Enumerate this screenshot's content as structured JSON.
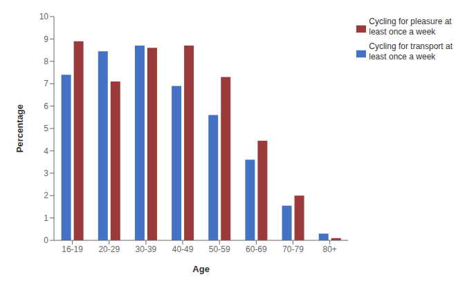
{
  "chart_data": {
    "type": "bar",
    "categories": [
      "16-19",
      "20-29",
      "30-39",
      "40-49",
      "50-59",
      "60-69",
      "70-79",
      "80+"
    ],
    "series": [
      {
        "name": "Cycling for transport at\nleast once a week",
        "color": "#4472C4",
        "values": [
          7.4,
          8.45,
          8.7,
          6.9,
          5.6,
          3.6,
          1.55,
          0.3
        ]
      },
      {
        "name": "Cycling for pleasure at\nleast once a week",
        "color": "#9B3A3A",
        "values": [
          8.9,
          7.1,
          8.6,
          8.7,
          7.3,
          4.45,
          2.0,
          0.1
        ]
      }
    ],
    "xlabel": "Age",
    "ylabel": "Percentage",
    "ylim": [
      0,
      10
    ],
    "yticks": [
      0,
      1,
      2,
      3,
      4,
      5,
      6,
      7,
      8,
      9,
      10
    ],
    "grid": false,
    "legend": "upper right"
  }
}
